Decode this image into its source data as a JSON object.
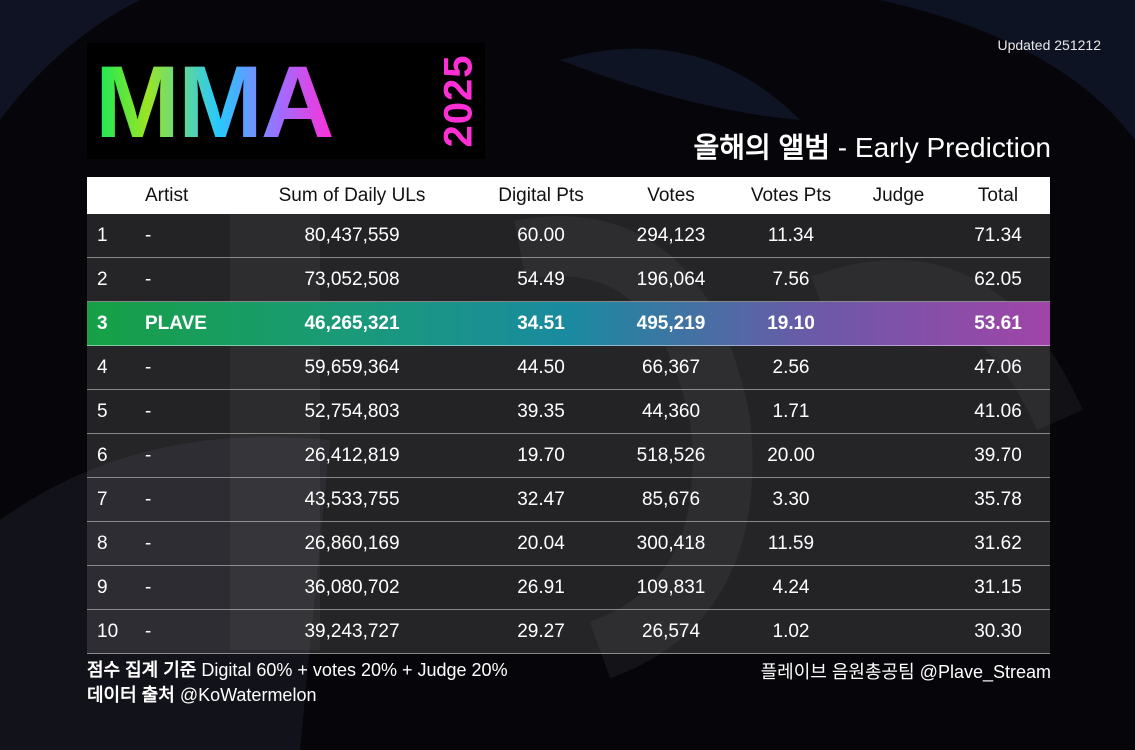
{
  "updated": "Updated 251212",
  "logo": {
    "text": "MMA",
    "year": "2025"
  },
  "subtitle": {
    "korean": "올해의 앨범",
    "english": " - Early Prediction"
  },
  "chart_data": {
    "type": "table",
    "title": "올해의 앨범 - Early Prediction",
    "columns": [
      "",
      "Artist",
      "Sum of Daily ULs",
      "Digital Pts",
      "Votes",
      "Votes Pts",
      "Judge",
      "Total"
    ],
    "rows": [
      {
        "rank": "1",
        "artist": "-",
        "uls": "80,437,559",
        "digital": "60.00",
        "votes": "294,123",
        "votes_pts": "11.34",
        "judge": "",
        "total": "71.34",
        "highlight": false
      },
      {
        "rank": "2",
        "artist": "-",
        "uls": "73,052,508",
        "digital": "54.49",
        "votes": "196,064",
        "votes_pts": "7.56",
        "judge": "",
        "total": "62.05",
        "highlight": false
      },
      {
        "rank": "3",
        "artist": "PLAVE",
        "uls": "46,265,321",
        "digital": "34.51",
        "votes": "495,219",
        "votes_pts": "19.10",
        "judge": "",
        "total": "53.61",
        "highlight": true
      },
      {
        "rank": "4",
        "artist": "-",
        "uls": "59,659,364",
        "digital": "44.50",
        "votes": "66,367",
        "votes_pts": "2.56",
        "judge": "",
        "total": "47.06",
        "highlight": false
      },
      {
        "rank": "5",
        "artist": "-",
        "uls": "52,754,803",
        "digital": "39.35",
        "votes": "44,360",
        "votes_pts": "1.71",
        "judge": "",
        "total": "41.06",
        "highlight": false
      },
      {
        "rank": "6",
        "artist": "-",
        "uls": "26,412,819",
        "digital": "19.70",
        "votes": "518,526",
        "votes_pts": "20.00",
        "judge": "",
        "total": "39.70",
        "highlight": false
      },
      {
        "rank": "7",
        "artist": "-",
        "uls": "43,533,755",
        "digital": "32.47",
        "votes": "85,676",
        "votes_pts": "3.30",
        "judge": "",
        "total": "35.78",
        "highlight": false
      },
      {
        "rank": "8",
        "artist": "-",
        "uls": "26,860,169",
        "digital": "20.04",
        "votes": "300,418",
        "votes_pts": "11.59",
        "judge": "",
        "total": "31.62",
        "highlight": false
      },
      {
        "rank": "9",
        "artist": "-",
        "uls": "36,080,702",
        "digital": "26.91",
        "votes": "109,831",
        "votes_pts": "4.24",
        "judge": "",
        "total": "31.15",
        "highlight": false
      },
      {
        "rank": "10",
        "artist": "-",
        "uls": "39,243,727",
        "digital": "29.27",
        "votes": "26,574",
        "votes_pts": "1.02",
        "judge": "",
        "total": "30.30",
        "highlight": false
      }
    ]
  },
  "footer": {
    "criteria_label": "점수 집계 기준",
    "criteria_value": " Digital 60% + votes 20% + Judge 20%",
    "source_label": "데이터 출처",
    "source_value": " @KoWatermelon",
    "credit": "플레이브 음원총공팀 @Plave_Stream"
  },
  "colors": {
    "background": "#06060a",
    "logo_gradient": [
      "#12e85a",
      "#27c9ff",
      "#ff2fd6"
    ],
    "highlight_gradient": [
      "#16a045",
      "#1a8aa0",
      "#a044a8"
    ]
  }
}
